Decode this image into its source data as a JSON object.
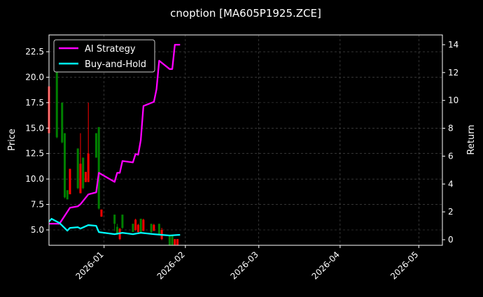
{
  "chart_data": {
    "type": "line",
    "title": "cnoption [MA605P1925.ZCE]",
    "ylabel_left": "Price",
    "ylabel_right": "Return",
    "xlim": [
      "2025-12-11",
      "2026-05-10"
    ],
    "ylim_left": [
      3.49,
      24.15
    ],
    "ylim_right": [
      -0.4,
      14.7
    ],
    "x_ticks": [
      "2026-01",
      "2026-02",
      "2026-03",
      "2026-04",
      "2026-05"
    ],
    "y_ticks_left": [
      "5.0",
      "7.5",
      "10.0",
      "12.5",
      "15.0",
      "17.5",
      "20.0",
      "22.5"
    ],
    "y_ticks_right": [
      "0",
      "2",
      "4",
      "6",
      "8",
      "10",
      "12",
      "14"
    ],
    "grid": true,
    "legend_position": "top-left",
    "colors": {
      "background": "#000000",
      "ai": "#ff00ff",
      "bh": "#00ffff",
      "up": "#ff0000",
      "down": "#008000",
      "grid": "#555555"
    },
    "candles": [
      {
        "date": "2025-12-11",
        "o": 14.5,
        "h": 23.3,
        "l": 14.5,
        "c": 19.1
      },
      {
        "date": "2025-12-14",
        "o": 22.1,
        "h": 22.1,
        "l": 14.0,
        "c": 14.1
      },
      {
        "date": "2025-12-16",
        "o": 17.5,
        "h": 17.5,
        "l": 13.5,
        "c": 13.6
      },
      {
        "date": "2025-12-17",
        "o": 14.5,
        "h": 14.5,
        "l": 8.1,
        "c": 8.2
      },
      {
        "date": "2025-12-18",
        "o": 8.9,
        "h": 8.9,
        "l": 8.0,
        "c": 8.0
      },
      {
        "date": "2025-12-19",
        "o": 8.5,
        "h": 11.0,
        "l": 8.5,
        "c": 11.0
      },
      {
        "date": "2025-12-22",
        "o": 13.0,
        "h": 13.0,
        "l": 9.0,
        "c": 9.1
      },
      {
        "date": "2025-12-23",
        "o": 8.6,
        "h": 14.5,
        "l": 8.6,
        "c": 11.5
      },
      {
        "date": "2025-12-24",
        "o": 12.1,
        "h": 12.1,
        "l": 9.0,
        "c": 9.1
      },
      {
        "date": "2025-12-25",
        "o": 9.7,
        "h": 10.7,
        "l": 9.7,
        "c": 10.7
      },
      {
        "date": "2025-12-26",
        "o": 9.7,
        "h": 17.5,
        "l": 9.7,
        "c": 12.5
      },
      {
        "date": "2025-12-29",
        "o": 14.5,
        "h": 14.5,
        "l": 12.1,
        "c": 12.1
      },
      {
        "date": "2025-12-30",
        "o": 15.1,
        "h": 15.1,
        "l": 7.0,
        "c": 7.1
      },
      {
        "date": "2025-12-31",
        "o": 6.3,
        "h": 7.0,
        "l": 6.3,
        "c": 7.0
      },
      {
        "date": "2026-01-05",
        "o": 6.5,
        "h": 6.5,
        "l": 4.9,
        "c": 5.6
      },
      {
        "date": "2026-01-06",
        "o": 5.3,
        "h": 5.6,
        "l": 4.5,
        "c": 4.6
      },
      {
        "date": "2026-01-07",
        "o": 4.1,
        "h": 5.2,
        "l": 4.0,
        "c": 5.1
      },
      {
        "date": "2026-01-08",
        "o": 6.5,
        "h": 6.5,
        "l": 5.1,
        "c": 5.2
      },
      {
        "date": "2026-01-12",
        "o": 5.6,
        "h": 5.6,
        "l": 4.8,
        "c": 4.8
      },
      {
        "date": "2026-01-13",
        "o": 5.0,
        "h": 6.1,
        "l": 4.9,
        "c": 6.0
      },
      {
        "date": "2026-01-14",
        "o": 4.8,
        "h": 5.6,
        "l": 4.7,
        "c": 5.5
      },
      {
        "date": "2026-01-15",
        "o": 6.1,
        "h": 6.1,
        "l": 4.7,
        "c": 4.8
      },
      {
        "date": "2026-01-16",
        "o": 4.9,
        "h": 6.1,
        "l": 4.9,
        "c": 6.0
      },
      {
        "date": "2026-01-19",
        "o": 5.6,
        "h": 5.6,
        "l": 4.7,
        "c": 4.8
      },
      {
        "date": "2026-01-20",
        "o": 4.9,
        "h": 5.6,
        "l": 4.9,
        "c": 5.5
      },
      {
        "date": "2026-01-22",
        "o": 5.6,
        "h": 5.6,
        "l": 4.5,
        "c": 4.6
      },
      {
        "date": "2026-01-23",
        "o": 4.1,
        "h": 5.2,
        "l": 4.0,
        "c": 5.0
      },
      {
        "date": "2026-01-26",
        "o": 4.5,
        "h": 4.5,
        "l": 3.2,
        "c": 3.3
      },
      {
        "date": "2026-01-27",
        "o": 4.5,
        "h": 4.5,
        "l": 3.2,
        "c": 3.3
      },
      {
        "date": "2026-01-28",
        "o": 3.4,
        "h": 4.1,
        "l": 3.4,
        "c": 4.1
      },
      {
        "date": "2026-01-29",
        "o": 3.4,
        "h": 4.1,
        "l": 3.4,
        "c": 4.1
      }
    ],
    "series": [
      {
        "name": "AI Strategy",
        "axis": "right",
        "points": [
          [
            "2025-12-11",
            1.15
          ],
          [
            "2025-12-15",
            1.15
          ],
          [
            "2025-12-19",
            2.3
          ],
          [
            "2025-12-22",
            2.4
          ],
          [
            "2025-12-23",
            2.55
          ],
          [
            "2025-12-26",
            3.25
          ],
          [
            "2025-12-29",
            3.4
          ],
          [
            "2025-12-30",
            4.8
          ],
          [
            "2026-01-05",
            4.15
          ],
          [
            "2026-01-06",
            4.8
          ],
          [
            "2026-01-07",
            4.8
          ],
          [
            "2026-01-08",
            5.65
          ],
          [
            "2026-01-12",
            5.55
          ],
          [
            "2026-01-13",
            6.15
          ],
          [
            "2026-01-14",
            6.1
          ],
          [
            "2026-01-15",
            7.15
          ],
          [
            "2026-01-16",
            9.6
          ],
          [
            "2026-01-20",
            9.9
          ],
          [
            "2026-01-21",
            10.8
          ],
          [
            "2026-01-22",
            12.85
          ],
          [
            "2026-01-26",
            12.25
          ],
          [
            "2026-01-27",
            12.25
          ],
          [
            "2026-01-28",
            14.0
          ],
          [
            "2026-01-30",
            14.0
          ]
        ]
      },
      {
        "name": "Buy-and-Hold",
        "axis": "right",
        "points": [
          [
            "2025-12-11",
            1.3
          ],
          [
            "2025-12-12",
            1.5
          ],
          [
            "2025-12-15",
            1.2
          ],
          [
            "2025-12-18",
            0.65
          ],
          [
            "2025-12-19",
            0.85
          ],
          [
            "2025-12-22",
            0.9
          ],
          [
            "2025-12-23",
            0.8
          ],
          [
            "2025-12-26",
            1.05
          ],
          [
            "2025-12-29",
            1.0
          ],
          [
            "2025-12-30",
            0.55
          ],
          [
            "2026-01-05",
            0.4
          ],
          [
            "2026-01-08",
            0.5
          ],
          [
            "2026-01-12",
            0.4
          ],
          [
            "2026-01-15",
            0.5
          ],
          [
            "2026-01-20",
            0.4
          ],
          [
            "2026-01-26",
            0.3
          ],
          [
            "2026-01-30",
            0.35
          ]
        ]
      }
    ]
  }
}
